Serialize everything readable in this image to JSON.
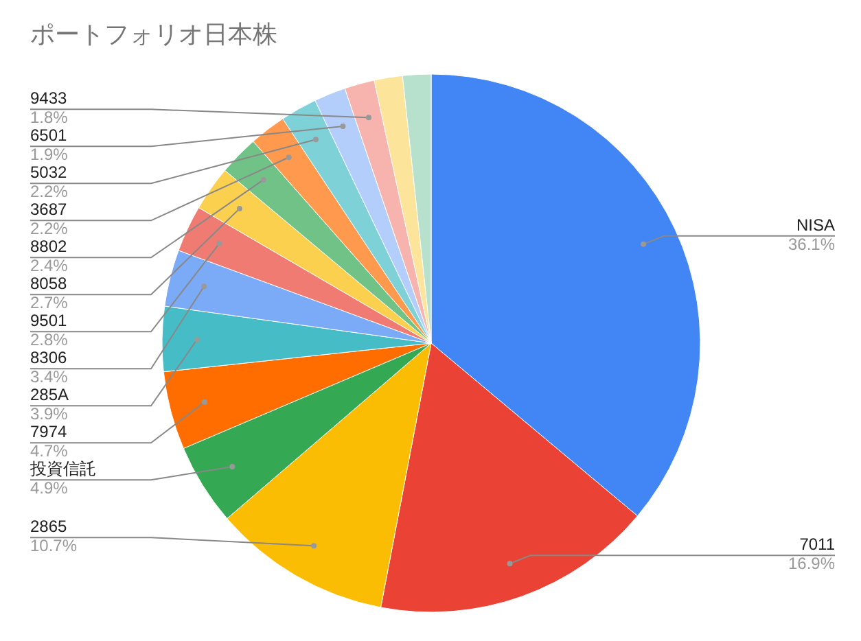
{
  "chart_data": {
    "type": "pie",
    "title": "ポートフォリオ日本株",
    "categories": [
      "NISA",
      "7011",
      "2865",
      "投資信託",
      "7974",
      "285A",
      "8306",
      "9501",
      "8058",
      "8802",
      "3687",
      "5032",
      "6501",
      "9433",
      null,
      null
    ],
    "values": [
      36.1,
      16.9,
      10.7,
      4.9,
      4.7,
      3.9,
      3.4,
      2.8,
      2.7,
      2.4,
      2.2,
      2.2,
      1.9,
      1.8,
      1.7,
      1.7
    ],
    "value_labels": [
      "36.1%",
      "16.9%",
      "10.7%",
      "4.9%",
      "4.7%",
      "3.9%",
      "3.4%",
      "2.8%",
      "2.7%",
      "2.4%",
      "2.2%",
      "2.2%",
      "1.9%",
      "1.8%",
      null,
      null
    ],
    "colors": [
      "#4285f4",
      "#ea4335",
      "#fbbc04",
      "#34a853",
      "#ff6d01",
      "#46bdc6",
      "#7baaf7",
      "#f07b72",
      "#fcd04f",
      "#71c287",
      "#ff994d",
      "#7ed1d7",
      "#b3cefb",
      "#f7b4ae",
      "#fde49b",
      "#b7e1cd"
    ]
  }
}
